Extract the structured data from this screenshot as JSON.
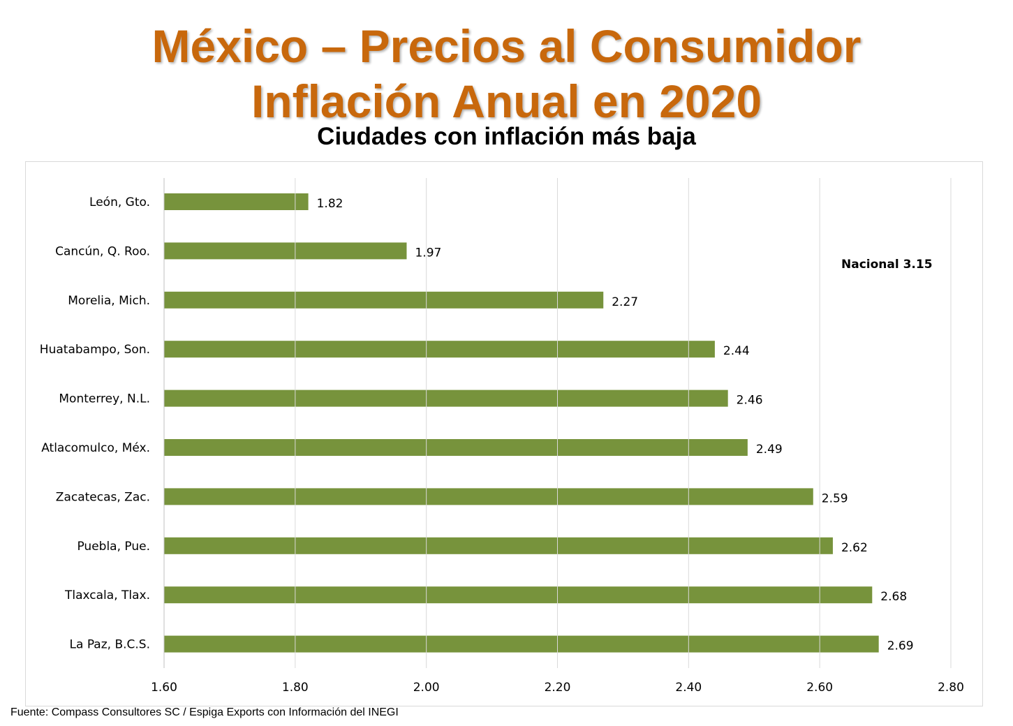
{
  "title_line1": "México – Precios al Consumidor",
  "title_line2": "Inflación Anual en 2020",
  "subtitle": "Ciudades con inflación más baja",
  "source": "Fuente: Compass Consultores SC / Espiga Exports con Información del INEGI",
  "chart_data": {
    "type": "bar",
    "orientation": "horizontal",
    "categories": [
      "León, Gto.",
      "Cancún, Q. Roo.",
      "Morelia, Mich.",
      "Huatabampo, Son.",
      "Monterrey, N.L.",
      "Atlacomulco, Méx.",
      "Zacatecas, Zac.",
      "Puebla, Pue.",
      "Tlaxcala, Tlax.",
      "La Paz, B.C.S."
    ],
    "values": [
      1.82,
      1.97,
      2.27,
      2.44,
      2.46,
      2.49,
      2.59,
      2.62,
      2.68,
      2.69
    ],
    "data_labels": [
      "1.82",
      "1.97",
      "2.27",
      "2.44",
      "2.46",
      "2.49",
      "2.59",
      "2.62",
      "2.68",
      "2.69"
    ],
    "xlim": [
      1.6,
      2.8
    ],
    "xticks": [
      "1.60",
      "1.80",
      "2.00",
      "2.20",
      "2.40",
      "2.60",
      "2.80"
    ],
    "annotation": "Nacional 3.15",
    "grid": true,
    "bar_color": "#77933C"
  }
}
